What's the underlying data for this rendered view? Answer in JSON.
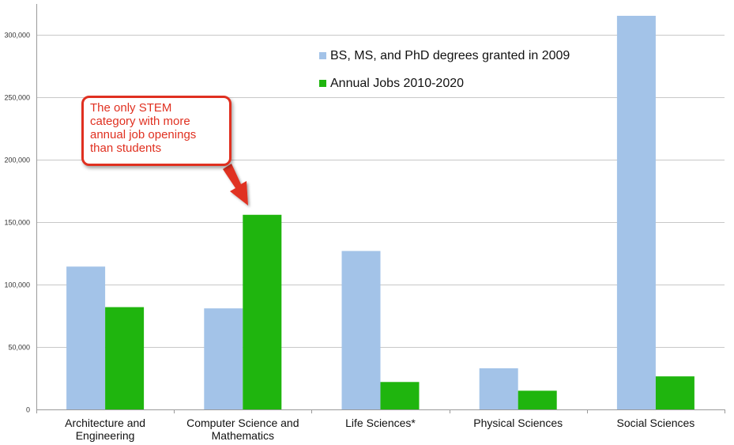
{
  "chart_data": {
    "type": "bar",
    "title": "",
    "xlabel": "",
    "ylabel": "",
    "ylim": [
      0,
      325000
    ],
    "yticks": [
      0,
      50000,
      100000,
      150000,
      200000,
      250000,
      300000
    ],
    "ytick_labels": [
      "0",
      "50,000",
      "100,000",
      "150,000",
      "200,000",
      "250,000",
      "300,000"
    ],
    "grid": true,
    "legend_position": "top-right",
    "categories": [
      [
        "Architecture and",
        "Engineering"
      ],
      [
        "Computer Science and",
        "Mathematics"
      ],
      [
        "Life Sciences*"
      ],
      [
        "Physical Sciences"
      ],
      [
        "Social Sciences"
      ]
    ],
    "series": [
      {
        "name": "BS, MS, and PhD degrees granted in 2009",
        "color": "#a3c3e8",
        "values": [
          114500,
          81000,
          127000,
          33000,
          315500
        ]
      },
      {
        "name": "Annual Jobs 2010-2020",
        "color": "#1fb50e",
        "values": [
          82000,
          156000,
          22000,
          15000,
          26500
        ]
      }
    ],
    "annotation": {
      "lines": [
        "The only STEM",
        "category with more",
        "annual job openings",
        "than students"
      ],
      "color": "#e03020",
      "points_to": "Computer Science and Mathematics - Annual Jobs 2010-2020"
    }
  }
}
